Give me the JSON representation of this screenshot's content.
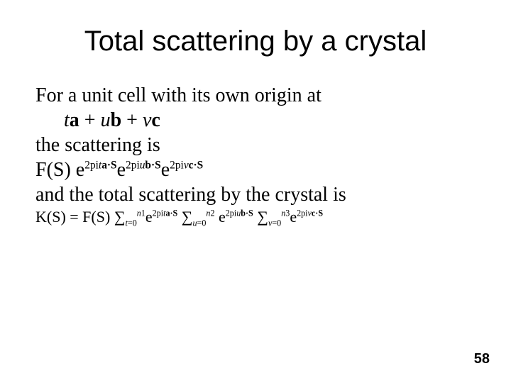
{
  "title": "Total scattering by a crystal",
  "line1": "For a unit cell with its own origin at",
  "line3": "the scattering is",
  "line5": "and the total scattering by the crystal is",
  "page_number": "58",
  "cell_origin": {
    "t": "t",
    "a": "a",
    "u": "u",
    "b": "b",
    "v": "v",
    "c": "c"
  },
  "fs_line": {
    "F": "F(S) ",
    "e": "e",
    "exp1_pre": "2",
    "exp1_pi": "p",
    "exp1_i": "i",
    "exp1_t": "t",
    "exp1_a": "a",
    "exp1_dot": "·",
    "exp1_S": "S",
    "exp2_pre": "2pi",
    "exp2_u": "u",
    "exp2_b": "b",
    "exp2_dot": "·",
    "exp2_S": "S",
    "exp3_pre": "2",
    "exp3_pi": "p",
    "exp3_i": "i",
    "exp3_v": "v",
    "exp3_c": "c",
    "exp3_dot": "·",
    "exp3_S": "S"
  },
  "ks_line": {
    "K": "K(S) = F(S) ",
    "sum": "∑",
    "e": "e",
    "t": "t",
    "u": "u",
    "v": "v",
    "eq0": "=0",
    "n1": "n",
    "one": "1",
    "two": "2",
    "three": "3",
    "sp": " ",
    "exp_a_pre": "2",
    "exp_a_pi": "p",
    "exp_a_i": "i",
    "exp_a_t": "t",
    "exp_a_a": "a",
    "exp_a_dot": "·",
    "exp_a_S": "S",
    "exp_b_pre": "2pi",
    "exp_b_u": "u",
    "exp_b_b": "b",
    "exp_b_dot": "·",
    "exp_b_S": "S",
    "exp_c_pre": "2",
    "exp_c_pi": "p",
    "exp_c_i": "i",
    "exp_c_v": "v",
    "exp_c_c": "c",
    "exp_c_dot": "·",
    "exp_c_S": "S"
  }
}
